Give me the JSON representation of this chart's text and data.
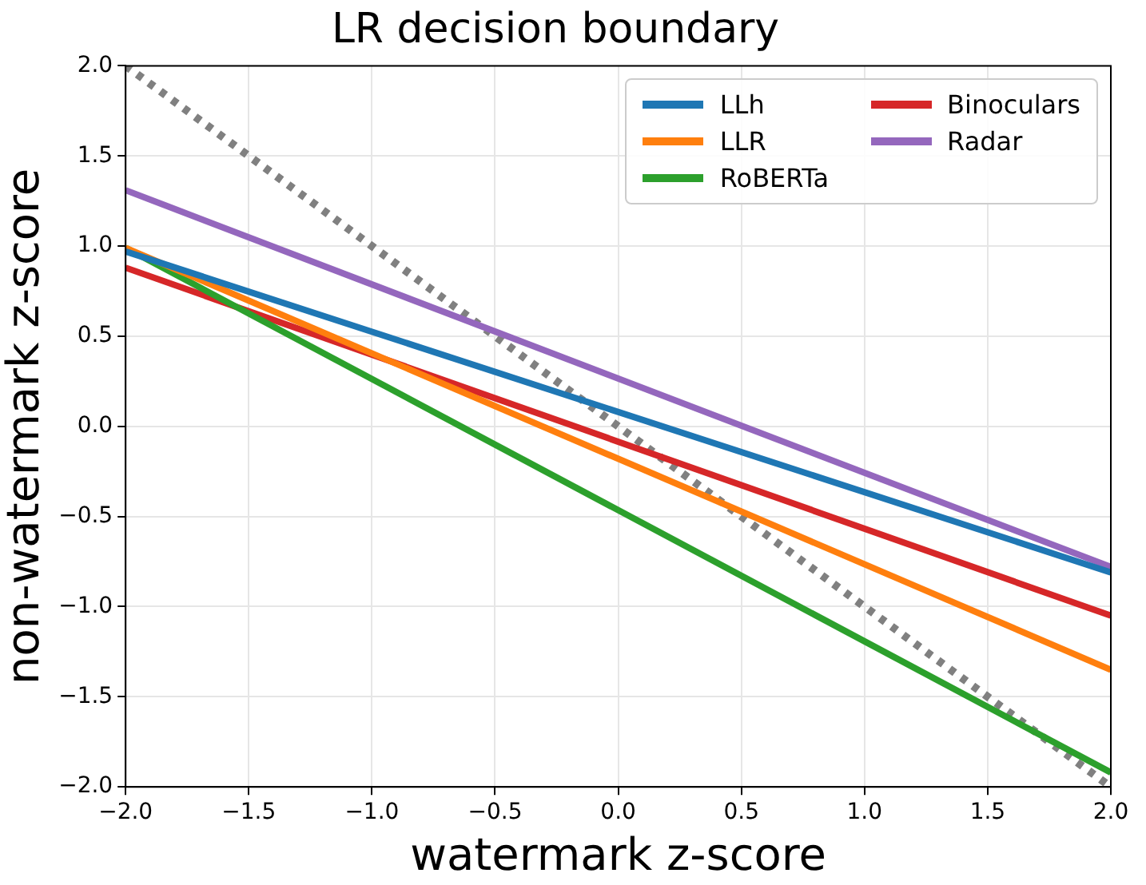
{
  "chart_data": {
    "type": "line",
    "title": "LR decision boundary",
    "xlabel": "watermark z-score",
    "ylabel": "non-watermark z-score",
    "x": [
      -2,
      2
    ],
    "series": [
      {
        "name": "LLh",
        "color": "#1f77b4",
        "values": [
          0.97,
          -0.81
        ]
      },
      {
        "name": "LLR",
        "color": "#ff7f0e",
        "values": [
          0.99,
          -1.35
        ]
      },
      {
        "name": "RoBERTa",
        "color": "#2ca02c",
        "values": [
          0.99,
          -1.92
        ]
      },
      {
        "name": "Binoculars",
        "color": "#d62728",
        "values": [
          0.88,
          -1.05
        ]
      },
      {
        "name": "Radar",
        "color": "#9467bd",
        "values": [
          1.31,
          -0.78
        ]
      },
      {
        "color": "#808080",
        "values": [
          2,
          -2
        ],
        "line_style": "dotted"
      }
    ],
    "xlim": [
      -2,
      2
    ],
    "ylim": [
      -2,
      2
    ],
    "xticks": [
      {
        "value": -2,
        "label": "−2.0"
      },
      {
        "value": -1.5,
        "label": "−1.5"
      },
      {
        "value": -1,
        "label": "−1.0"
      },
      {
        "value": -0.5,
        "label": "−0.5"
      },
      {
        "value": 0,
        "label": "0.0"
      },
      {
        "value": 0.5,
        "label": "0.5"
      },
      {
        "value": 1,
        "label": "1.0"
      },
      {
        "value": 1.5,
        "label": "1.5"
      },
      {
        "value": 2,
        "label": "2.0"
      }
    ],
    "yticks": [
      {
        "value": -2,
        "label": "−2.0"
      },
      {
        "value": -1.5,
        "label": "−1.5"
      },
      {
        "value": -1,
        "label": "−1.0"
      },
      {
        "value": -0.5,
        "label": "−0.5"
      },
      {
        "value": 0,
        "label": "0.0"
      },
      {
        "value": 0.5,
        "label": "0.5"
      },
      {
        "value": 1,
        "label": "1.0"
      },
      {
        "value": 1.5,
        "label": "1.5"
      },
      {
        "value": 2,
        "label": "2.0"
      }
    ],
    "grid": true,
    "legend": "top right",
    "marker": "none",
    "line_style": "solid"
  }
}
